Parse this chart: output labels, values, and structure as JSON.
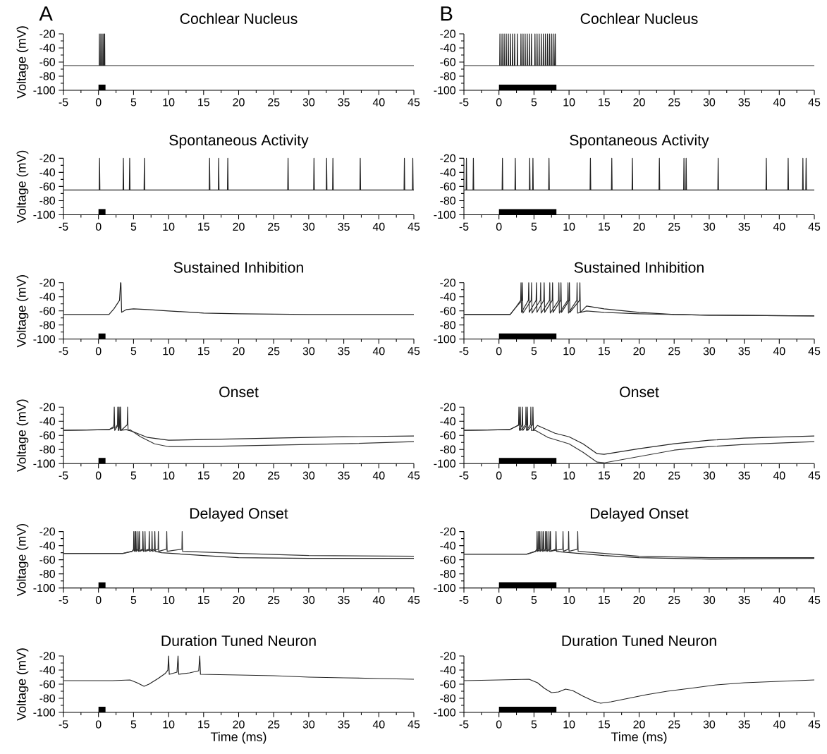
{
  "chart_data": [
    {
      "type": "line",
      "title": "Cochlear Nucleus",
      "ylabel": "Voltage (mV)",
      "annotations": [
        "A"
      ],
      "xlim": [
        -5,
        45
      ],
      "xticks": [
        -5,
        0,
        5,
        10,
        15,
        20,
        25,
        30,
        35,
        40,
        45
      ],
      "ylim": [
        -100,
        -20
      ],
      "yticks": [
        -100,
        -80,
        -60,
        -40,
        -20
      ],
      "series": [
        {
          "color": "#222222",
          "x": [
            -5,
            0.1,
            0.13,
            0.16,
            0.3,
            0.33,
            0.36,
            0.5,
            0.53,
            0.56,
            0.7,
            0.73,
            0.76,
            0.85,
            0.88,
            0.91,
            45
          ],
          "values": [
            -65,
            -65,
            -20,
            -65,
            -65,
            -20,
            -65,
            -65,
            -20,
            -65,
            -65,
            -20,
            -65,
            -65,
            -20,
            -65,
            -65
          ]
        }
      ],
      "bands": [
        {
          "axis": "x",
          "from": 0,
          "to": 1,
          "color": "#000000"
        }
      ]
    },
    {
      "type": "line",
      "title": "Cochlear Nucleus",
      "annotations": [
        "B"
      ],
      "xlim": [
        -5,
        45
      ],
      "xticks": [
        -5,
        0,
        5,
        10,
        15,
        20,
        25,
        30,
        35,
        40,
        45
      ],
      "ylim": [
        -100,
        -20
      ],
      "yticks": [
        -100,
        -80,
        -60,
        -40,
        -20
      ],
      "series": [
        {
          "color": "#222222",
          "x": [
            -5,
            0.1,
            0.14,
            0.18,
            0.4,
            0.44,
            0.48,
            0.7,
            0.74,
            0.78,
            1.0,
            1.04,
            1.08,
            1.3,
            1.34,
            1.38,
            1.6,
            1.64,
            1.68,
            1.9,
            1.94,
            1.98,
            2.2,
            2.24,
            2.28,
            2.6,
            2.64,
            2.68,
            3.1,
            3.14,
            3.18,
            3.4,
            3.44,
            3.48,
            3.7,
            3.74,
            3.78,
            4.0,
            4.04,
            4.08,
            4.3,
            4.34,
            4.38,
            4.6,
            4.64,
            4.68,
            5.1,
            5.14,
            5.18,
            5.4,
            5.44,
            5.48,
            5.7,
            5.74,
            5.78,
            6.0,
            6.04,
            6.08,
            6.3,
            6.34,
            6.38,
            6.6,
            6.64,
            6.68,
            6.9,
            6.94,
            6.98,
            7.2,
            7.24,
            7.28,
            7.5,
            7.54,
            7.58,
            7.8,
            7.84,
            7.88,
            8.0,
            8.04,
            8.08,
            45
          ],
          "values": [
            -65,
            -65,
            -20,
            -65,
            -65,
            -20,
            -65,
            -65,
            -20,
            -65,
            -65,
            -20,
            -65,
            -65,
            -20,
            -65,
            -65,
            -20,
            -65,
            -65,
            -20,
            -65,
            -65,
            -20,
            -65,
            -65,
            -20,
            -65,
            -65,
            -20,
            -65,
            -65,
            -20,
            -65,
            -65,
            -20,
            -65,
            -65,
            -20,
            -65,
            -65,
            -20,
            -65,
            -65,
            -20,
            -65,
            -65,
            -20,
            -65,
            -65,
            -20,
            -65,
            -65,
            -20,
            -65,
            -65,
            -20,
            -65,
            -65,
            -20,
            -65,
            -65,
            -20,
            -65,
            -65,
            -20,
            -65,
            -65,
            -20,
            -65,
            -65,
            -20,
            -65,
            -65,
            -20,
            -65,
            -65,
            -20,
            -65,
            -65
          ]
        }
      ],
      "bands": [
        {
          "axis": "x",
          "from": 0,
          "to": 8.2,
          "color": "#000000"
        }
      ]
    },
    {
      "type": "line",
      "title": "Spontaneous Activity",
      "ylabel": "Voltage (mV)",
      "xlim": [
        -5,
        45
      ],
      "xticks": [
        -5,
        0,
        5,
        10,
        15,
        20,
        25,
        30,
        35,
        40,
        45
      ],
      "ylim": [
        -100,
        -20
      ],
      "yticks": [
        -100,
        -80,
        -60,
        -40,
        -20
      ],
      "series": [
        {
          "color": "#222222",
          "x": [
            -5,
            0.1,
            0.15,
            0.2,
            3.5,
            3.55,
            3.6,
            4.4,
            4.45,
            4.5,
            6.5,
            6.55,
            6.6,
            15.8,
            15.85,
            15.9,
            17.1,
            17.15,
            17.2,
            18.4,
            18.45,
            18.5,
            27.0,
            27.05,
            27.1,
            30.7,
            30.75,
            30.8,
            32.5,
            32.55,
            32.6,
            33.4,
            33.45,
            33.5,
            37.3,
            37.35,
            37.4,
            43.6,
            43.65,
            43.7,
            44.8,
            44.85,
            44.9,
            45
          ],
          "values": [
            -65,
            -65,
            -20,
            -65,
            -65,
            -20,
            -65,
            -65,
            -20,
            -65,
            -65,
            -20,
            -65,
            -65,
            -20,
            -65,
            -65,
            -20,
            -65,
            -65,
            -20,
            -65,
            -65,
            -20,
            -65,
            -65,
            -20,
            -65,
            -65,
            -20,
            -65,
            -65,
            -20,
            -65,
            -65,
            -20,
            -65,
            -65,
            -20,
            -65,
            -65,
            -20,
            -65,
            -65
          ]
        }
      ],
      "bands": [
        {
          "axis": "x",
          "from": 0,
          "to": 1,
          "color": "#000000"
        }
      ]
    },
    {
      "type": "line",
      "title": "Spontaneous Activity",
      "xlim": [
        -5,
        45
      ],
      "xticks": [
        -5,
        0,
        5,
        10,
        15,
        20,
        25,
        30,
        35,
        40,
        45
      ],
      "ylim": [
        -100,
        -20
      ],
      "yticks": [
        -100,
        -80,
        -60,
        -40,
        -20
      ],
      "series": [
        {
          "color": "#222222",
          "x": [
            -5,
            -4.69,
            -4.64,
            -4.59,
            -3.7,
            -3.65,
            -3.6,
            0.45,
            0.5,
            0.55,
            2.28,
            2.33,
            2.38,
            4.34,
            4.39,
            4.44,
            4.8,
            4.85,
            4.9,
            7.09,
            7.14,
            7.19,
            13.0,
            13.05,
            13.1,
            16.05,
            16.1,
            16.15,
            18.99,
            19.04,
            19.09,
            22.84,
            22.89,
            22.94,
            26.35,
            26.4,
            26.45,
            26.66,
            26.71,
            26.76,
            31.23,
            31.28,
            31.33,
            38.1,
            38.15,
            38.2,
            41.22,
            41.27,
            41.32,
            43.32,
            43.37,
            43.42,
            43.78,
            43.83,
            43.88,
            45
          ],
          "values": [
            -65,
            -65,
            -20,
            -65,
            -65,
            -20,
            -65,
            -65,
            -20,
            -65,
            -65,
            -20,
            -65,
            -65,
            -20,
            -65,
            -65,
            -20,
            -65,
            -65,
            -20,
            -65,
            -65,
            -20,
            -65,
            -65,
            -20,
            -65,
            -65,
            -20,
            -65,
            -65,
            -20,
            -65,
            -65,
            -20,
            -65,
            -65,
            -20,
            -65,
            -65,
            -20,
            -65,
            -65,
            -20,
            -65,
            -65,
            -20,
            -65,
            -65,
            -20,
            -65,
            -65,
            -20,
            -65,
            -65
          ]
        }
      ],
      "bands": [
        {
          "axis": "x",
          "from": 0,
          "to": 8.2,
          "color": "#000000"
        }
      ]
    },
    {
      "type": "line",
      "title": "Sustained Inhibition",
      "ylabel": "Voltage (mV)",
      "xlim": [
        -5,
        45
      ],
      "xticks": [
        -5,
        0,
        5,
        10,
        15,
        20,
        25,
        30,
        35,
        40,
        45
      ],
      "ylim": [
        -100,
        -20
      ],
      "yticks": [
        -100,
        -80,
        -60,
        -40,
        -20
      ],
      "series": [
        {
          "color": "#222222",
          "x": [
            -5,
            1.5,
            2.2,
            3.0,
            3.15,
            3.2,
            3.3,
            4,
            5,
            7,
            10,
            15,
            20,
            30,
            45
          ],
          "values": [
            -65,
            -65,
            -57,
            -45,
            -20,
            -20,
            -62,
            -58,
            -57,
            -58,
            -60,
            -63,
            -64,
            -65,
            -65
          ]
        }
      ],
      "bands": [
        {
          "axis": "x",
          "from": 0,
          "to": 1,
          "color": "#000000"
        }
      ]
    },
    {
      "type": "line",
      "title": "Sustained Inhibition",
      "xlim": [
        -5,
        45
      ],
      "xticks": [
        -5,
        0,
        5,
        10,
        15,
        20,
        25,
        30,
        35,
        40,
        45
      ],
      "ylim": [
        -100,
        -20
      ],
      "yticks": [
        -100,
        -80,
        -60,
        -40,
        -20
      ],
      "series": [
        {
          "color": "#222222",
          "x": [
            -5,
            1.6,
            2.4,
            3.1,
            3.15,
            3.22,
            4.2,
            4.25,
            4.32,
            5.3,
            5.35,
            5.42,
            6.4,
            6.45,
            6.52,
            7.6,
            7.65,
            7.72,
            8.8,
            8.85,
            8.92,
            10.0,
            10.05,
            10.12,
            11.5,
            11.55,
            11.62,
            12.5,
            15,
            20,
            25,
            30,
            45
          ],
          "values": [
            -65,
            -65,
            -55,
            -45,
            -20,
            -62,
            -45,
            -20,
            -62,
            -45,
            -20,
            -62,
            -45,
            -20,
            -62,
            -45,
            -20,
            -62,
            -45,
            -20,
            -62,
            -45,
            -20,
            -62,
            -45,
            -20,
            -62,
            -53,
            -57,
            -62,
            -65,
            -66,
            -67
          ]
        },
        {
          "color": "#333333",
          "x": [
            -5,
            1.6,
            2.4,
            3.3,
            3.35,
            3.42,
            4.6,
            4.65,
            4.72,
            5.9,
            5.95,
            6.02,
            7.2,
            7.25,
            7.32,
            8.5,
            8.55,
            8.62,
            9.8,
            9.85,
            9.92,
            11.1,
            11.15,
            11.22,
            12.5,
            15,
            20,
            30,
            45
          ],
          "values": [
            -65,
            -65,
            -55,
            -45,
            -20,
            -63,
            -45,
            -20,
            -63,
            -45,
            -20,
            -63,
            -45,
            -20,
            -63,
            -45,
            -20,
            -63,
            -45,
            -20,
            -63,
            -45,
            -20,
            -63,
            -60,
            -62,
            -64,
            -66,
            -67
          ]
        }
      ],
      "bands": [
        {
          "axis": "x",
          "from": 0,
          "to": 8.2,
          "color": "#000000"
        }
      ]
    },
    {
      "type": "line",
      "title": "Onset",
      "ylabel": "Voltage (mV)",
      "xlim": [
        -5,
        45
      ],
      "xticks": [
        -5,
        0,
        5,
        10,
        15,
        20,
        25,
        30,
        35,
        40,
        45
      ],
      "ylim": [
        -100,
        -20
      ],
      "yticks": [
        -100,
        -80,
        -60,
        -40,
        -20
      ],
      "series": [
        {
          "color": "#222222",
          "x": [
            -5,
            1.5,
            2.1,
            2.2,
            2.25,
            2.32,
            2.8,
            2.85,
            2.92,
            3.0,
            3.05,
            3.12,
            4,
            5,
            7,
            10,
            15,
            25,
            35,
            45
          ],
          "values": [
            -53,
            -52,
            -48,
            -45,
            -20,
            -53,
            -45,
            -20,
            -53,
            -45,
            -20,
            -53,
            -52,
            -55,
            -63,
            -67,
            -66,
            -64,
            -62,
            -61
          ]
        },
        {
          "color": "#333333",
          "x": [
            -5,
            1.5,
            2.5,
            2.7,
            2.75,
            2.82,
            3.1,
            3.15,
            3.22,
            4.1,
            4.15,
            4.22,
            4.5,
            6,
            8,
            10,
            15,
            25,
            35,
            45
          ],
          "values": [
            -53,
            -52,
            -48,
            -45,
            -20,
            -53,
            -45,
            -20,
            -53,
            -45,
            -20,
            -53,
            -52,
            -62,
            -72,
            -76,
            -76,
            -74,
            -72,
            -69
          ]
        }
      ],
      "bands": [
        {
          "axis": "x",
          "from": 0,
          "to": 1,
          "color": "#000000"
        }
      ]
    },
    {
      "type": "line",
      "title": "Onset",
      "xlim": [
        -5,
        45
      ],
      "xticks": [
        -5,
        0,
        5,
        10,
        15,
        20,
        25,
        30,
        35,
        40,
        45
      ],
      "ylim": [
        -100,
        -20
      ],
      "yticks": [
        -100,
        -80,
        -60,
        -40,
        -20
      ],
      "series": [
        {
          "color": "#222222",
          "x": [
            -5,
            1.5,
            2.5,
            2.8,
            2.85,
            2.92,
            3.3,
            3.35,
            3.42,
            4.0,
            4.05,
            4.12,
            4.8,
            4.85,
            4.92,
            5.5,
            8,
            10,
            12,
            14,
            15,
            20,
            25,
            30,
            35,
            45
          ],
          "values": [
            -53,
            -52,
            -47,
            -45,
            -20,
            -53,
            -45,
            -20,
            -53,
            -45,
            -20,
            -53,
            -45,
            -20,
            -53,
            -46,
            -57,
            -62,
            -72,
            -86,
            -87,
            -79,
            -72,
            -67,
            -64,
            -61
          ]
        },
        {
          "color": "#333333",
          "x": [
            -5,
            1.5,
            2.5,
            3.0,
            3.05,
            3.12,
            3.8,
            3.85,
            3.92,
            4.5,
            4.55,
            4.62,
            5.2,
            7,
            10,
            12,
            14,
            15,
            20,
            25,
            30,
            35,
            45
          ],
          "values": [
            -53,
            -52,
            -47,
            -45,
            -20,
            -53,
            -45,
            -20,
            -53,
            -45,
            -20,
            -53,
            -53,
            -63,
            -72,
            -84,
            -98,
            -99,
            -90,
            -81,
            -76,
            -73,
            -69
          ]
        }
      ],
      "bands": [
        {
          "axis": "x",
          "from": 0,
          "to": 8.2,
          "color": "#000000"
        }
      ]
    },
    {
      "type": "line",
      "title": "Delayed Onset",
      "ylabel": "Voltage (mV)",
      "xlim": [
        -5,
        45
      ],
      "xticks": [
        -5,
        0,
        5,
        10,
        15,
        20,
        25,
        30,
        35,
        40,
        45
      ],
      "ylim": [
        -100,
        -20
      ],
      "yticks": [
        -100,
        -80,
        -60,
        -40,
        -20
      ],
      "series": [
        {
          "color": "#222222",
          "x": [
            -5,
            3.5,
            4.8,
            5.0,
            5.04,
            5.1,
            5.3,
            5.34,
            5.4,
            5.6,
            5.64,
            5.7,
            6.3,
            6.34,
            6.4,
            7.2,
            7.24,
            7.3,
            8.0,
            8.04,
            8.1,
            9,
            15,
            20,
            30,
            45
          ],
          "values": [
            -51,
            -51,
            -48,
            -45,
            -20,
            -48,
            -45,
            -20,
            -48,
            -45,
            -20,
            -48,
            -45,
            -20,
            -48,
            -45,
            -20,
            -48,
            -45,
            -20,
            -48,
            -50,
            -54,
            -57,
            -58,
            -58
          ]
        },
        {
          "color": "#333333",
          "x": [
            -5,
            3.5,
            4.8,
            5.2,
            5.24,
            5.3,
            5.8,
            5.84,
            5.9,
            6.6,
            6.64,
            6.7,
            7.6,
            7.64,
            7.7,
            8.5,
            8.54,
            8.6,
            9.7,
            9.74,
            9.8,
            11.9,
            11.94,
            12.0,
            20,
            30,
            45
          ],
          "values": [
            -51,
            -51,
            -48,
            -45,
            -20,
            -48,
            -45,
            -20,
            -48,
            -45,
            -20,
            -48,
            -45,
            -20,
            -48,
            -45,
            -20,
            -48,
            -45,
            -20,
            -48,
            -45,
            -20,
            -48,
            -51,
            -54,
            -55
          ]
        }
      ],
      "bands": [
        {
          "axis": "x",
          "from": 0,
          "to": 1,
          "color": "#000000"
        }
      ]
    },
    {
      "type": "line",
      "title": "Delayed Onset",
      "xlim": [
        -5,
        45
      ],
      "xticks": [
        -5,
        0,
        5,
        10,
        15,
        20,
        25,
        30,
        35,
        40,
        45
      ],
      "ylim": [
        -100,
        -20
      ],
      "yticks": [
        -100,
        -80,
        -60,
        -40,
        -20
      ],
      "series": [
        {
          "color": "#222222",
          "x": [
            -5,
            4,
            5.2,
            5.4,
            5.44,
            5.5,
            5.8,
            5.84,
            5.9,
            6.3,
            6.34,
            6.4,
            6.8,
            6.84,
            6.9,
            7.3,
            7.34,
            7.4,
            8.1,
            8.14,
            8.2,
            9,
            15,
            20,
            30,
            45
          ],
          "values": [
            -52,
            -52,
            -48,
            -45,
            -20,
            -48,
            -45,
            -20,
            -48,
            -45,
            -20,
            -48,
            -45,
            -20,
            -48,
            -45,
            -20,
            -48,
            -45,
            -20,
            -48,
            -49,
            -54,
            -57,
            -59,
            -58
          ]
        },
        {
          "color": "#333333",
          "x": [
            -5,
            4,
            5.3,
            5.6,
            5.64,
            5.7,
            6.1,
            6.14,
            6.2,
            6.6,
            6.64,
            6.7,
            7.1,
            7.14,
            7.2,
            9.1,
            9.14,
            9.2,
            9.9,
            9.94,
            10.0,
            11.2,
            11.24,
            11.3,
            20,
            30,
            45
          ],
          "values": [
            -52,
            -52,
            -48,
            -45,
            -20,
            -48,
            -45,
            -20,
            -48,
            -45,
            -20,
            -48,
            -45,
            -20,
            -48,
            -45,
            -20,
            -48,
            -45,
            -20,
            -48,
            -45,
            -20,
            -48,
            -55,
            -57,
            -57
          ]
        }
      ],
      "bands": [
        {
          "axis": "x",
          "from": 0,
          "to": 8.2,
          "color": "#000000"
        }
      ]
    },
    {
      "type": "line",
      "title": "Duration Tuned Neuron",
      "xlabel": "Time (ms)",
      "ylabel": "Voltage (mV)",
      "xlim": [
        -5,
        45
      ],
      "xticks": [
        -5,
        0,
        5,
        10,
        15,
        20,
        25,
        30,
        35,
        40,
        45
      ],
      "ylim": [
        -100,
        -20
      ],
      "yticks": [
        -100,
        -80,
        -60,
        -40,
        -20
      ],
      "series": [
        {
          "color": "#222222",
          "x": [
            -5,
            2,
            4.5,
            5.5,
            6.5,
            7.2,
            8.5,
            9.5,
            9.9,
            10.0,
            10.1,
            11.2,
            11.35,
            11.45,
            13,
            14.3,
            14.45,
            14.55,
            20,
            25,
            30,
            35,
            40,
            45
          ],
          "values": [
            -55,
            -55,
            -54,
            -58,
            -63,
            -60,
            -52,
            -45,
            -40,
            -20,
            -46,
            -43,
            -20,
            -46,
            -44,
            -41,
            -20,
            -46,
            -47,
            -48,
            -50,
            -51,
            -52,
            -53
          ]
        }
      ],
      "bands": [
        {
          "axis": "x",
          "from": 0,
          "to": 1,
          "color": "#000000"
        }
      ]
    },
    {
      "type": "line",
      "title": "Duration Tuned Neuron",
      "xlabel": "Time (ms)",
      "xlim": [
        -5,
        45
      ],
      "xticks": [
        -5,
        0,
        5,
        10,
        15,
        20,
        25,
        30,
        35,
        40,
        45
      ],
      "ylim": [
        -100,
        -20
      ],
      "yticks": [
        -100,
        -80,
        -60,
        -40,
        -20
      ],
      "series": [
        {
          "color": "#222222",
          "x": [
            -5,
            0,
            4.3,
            5.5,
            6.5,
            7.5,
            8.5,
            9.5,
            10.5,
            12,
            13.5,
            14.5,
            16,
            18.5,
            21,
            24,
            28,
            31,
            35,
            40,
            45
          ],
          "values": [
            -55,
            -54,
            -53,
            -58,
            -66,
            -72,
            -71,
            -67,
            -69,
            -77,
            -84,
            -87,
            -85,
            -80,
            -75,
            -70,
            -65,
            -61,
            -58,
            -56,
            -54
          ]
        }
      ],
      "bands": [
        {
          "axis": "x",
          "from": 0,
          "to": 8.2,
          "color": "#000000"
        }
      ]
    }
  ]
}
